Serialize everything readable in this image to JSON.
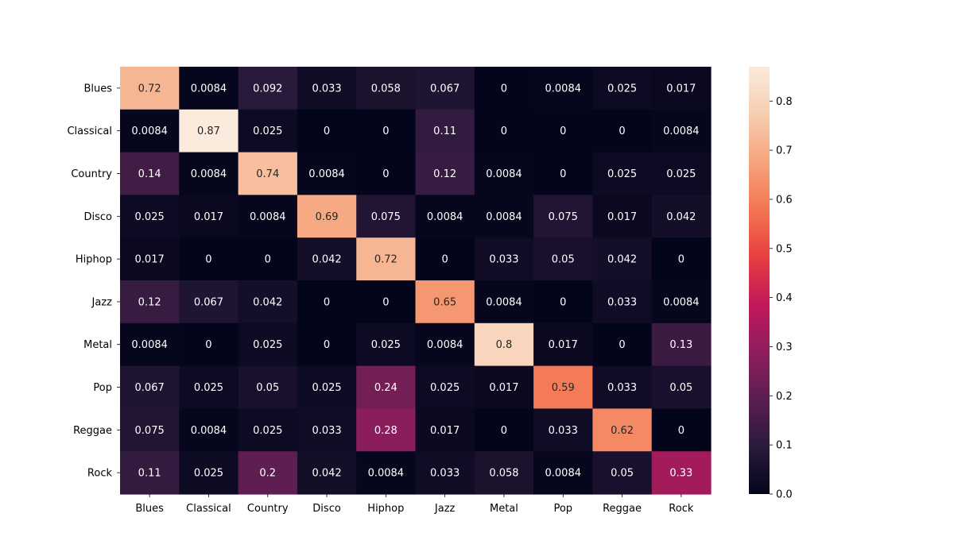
{
  "chart_data": {
    "type": "heatmap",
    "title": "",
    "xlabel": "",
    "ylabel": "",
    "x_categories": [
      "Blues",
      "Classical",
      "Country",
      "Disco",
      "Hiphop",
      "Jazz",
      "Metal",
      "Pop",
      "Reggae",
      "Rock"
    ],
    "y_categories": [
      "Blues",
      "Classical",
      "Country",
      "Disco",
      "Hiphop",
      "Jazz",
      "Metal",
      "Pop",
      "Reggae",
      "Rock"
    ],
    "values": [
      [
        0.72,
        0.0084,
        0.092,
        0.033,
        0.058,
        0.067,
        0,
        0.0084,
        0.025,
        0.017
      ],
      [
        0.0084,
        0.87,
        0.025,
        0,
        0,
        0.11,
        0,
        0,
        0,
        0.0084
      ],
      [
        0.14,
        0.0084,
        0.74,
        0.0084,
        0,
        0.12,
        0.0084,
        0,
        0.025,
        0.025
      ],
      [
        0.025,
        0.017,
        0.0084,
        0.69,
        0.075,
        0.0084,
        0.0084,
        0.075,
        0.017,
        0.042
      ],
      [
        0.017,
        0,
        0,
        0.042,
        0.72,
        0,
        0.033,
        0.05,
        0.042,
        0
      ],
      [
        0.12,
        0.067,
        0.042,
        0,
        0,
        0.65,
        0.0084,
        0,
        0.033,
        0.0084
      ],
      [
        0.0084,
        0,
        0.025,
        0,
        0.025,
        0.0084,
        0.8,
        0.017,
        0,
        0.13
      ],
      [
        0.067,
        0.025,
        0.05,
        0.025,
        0.24,
        0.025,
        0.017,
        0.59,
        0.033,
        0.05
      ],
      [
        0.075,
        0.0084,
        0.025,
        0.033,
        0.28,
        0.017,
        0,
        0.033,
        0.62,
        0
      ],
      [
        0.11,
        0.025,
        0.2,
        0.042,
        0.0084,
        0.033,
        0.058,
        0.0084,
        0.05,
        0.33
      ]
    ],
    "colorbar": {
      "range": [
        0,
        0.87
      ],
      "ticks": [
        0.0,
        0.1,
        0.2,
        0.3,
        0.4,
        0.5,
        0.6,
        0.7,
        0.8
      ],
      "tick_labels": [
        "0.0",
        "0.1",
        "0.2",
        "0.3",
        "0.4",
        "0.5",
        "0.6",
        "0.7",
        "0.8"
      ],
      "colormap": "rocket",
      "colormap_stops": [
        "#03051a",
        "#2b1a3c",
        "#5b1e51",
        "#8f1d5c",
        "#c1185a",
        "#e83f3f",
        "#f37651",
        "#f6a47c",
        "#f7cdb0",
        "#faebdd"
      ]
    },
    "annotation_text_colors": {
      "on_dark": "#ffffff",
      "on_light": "#262626"
    },
    "grid": false,
    "legend": "colorbar-right"
  }
}
